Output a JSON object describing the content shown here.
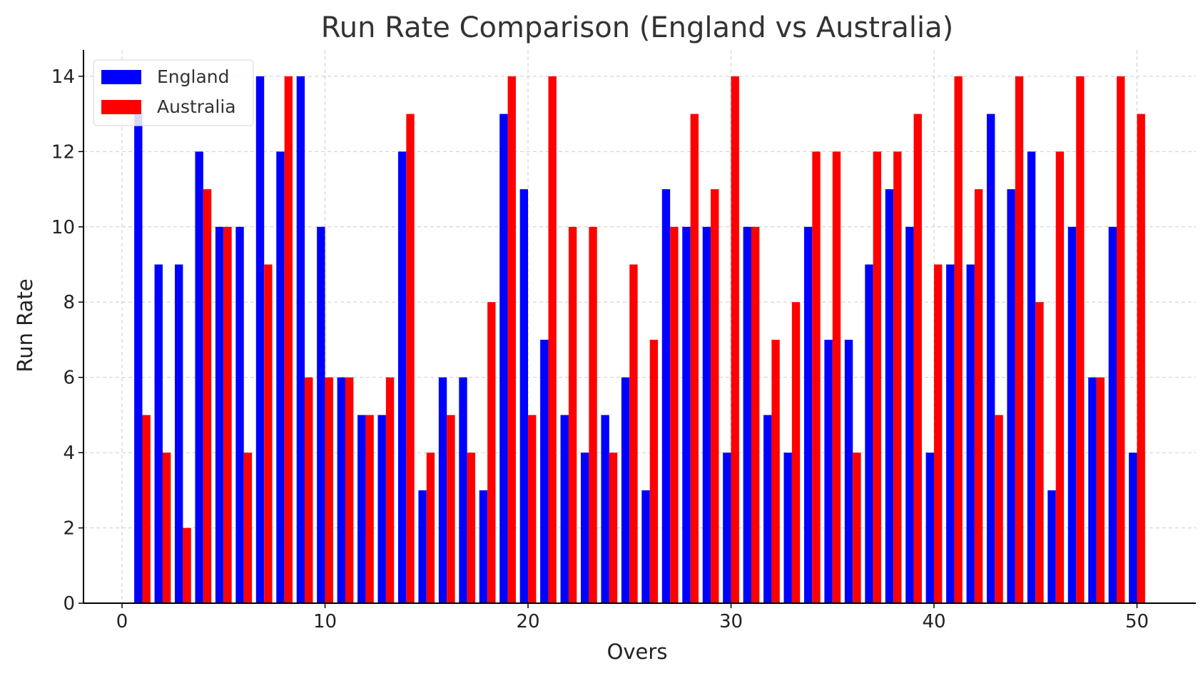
{
  "chart_data": {
    "type": "bar",
    "title": "Run Rate Comparison (England vs Australia)",
    "xlabel": "Overs",
    "ylabel": "Run Rate",
    "xlim": [
      -1.9,
      52.9
    ],
    "ylim": [
      0,
      14.7
    ],
    "x_ticks": [
      0,
      10,
      20,
      30,
      40,
      50
    ],
    "y_ticks": [
      0,
      2,
      4,
      6,
      8,
      10,
      12,
      14
    ],
    "grid": true,
    "legend_position": "top-left",
    "bar_width": 0.4,
    "x": [
      1,
      2,
      3,
      4,
      5,
      6,
      7,
      8,
      9,
      10,
      11,
      12,
      13,
      14,
      15,
      16,
      17,
      18,
      19,
      20,
      21,
      22,
      23,
      24,
      25,
      26,
      27,
      28,
      29,
      30,
      31,
      32,
      33,
      34,
      35,
      36,
      37,
      38,
      39,
      40,
      41,
      42,
      43,
      44,
      45,
      46,
      47,
      48,
      49,
      50
    ],
    "series": [
      {
        "name": "England",
        "color": "#0000ff",
        "offset": -0.2,
        "values": [
          13,
          9,
          9,
          12,
          10,
          10,
          14,
          12,
          14,
          10,
          6,
          5,
          5,
          12,
          3,
          6,
          6,
          3,
          13,
          11,
          7,
          5,
          4,
          5,
          6,
          3,
          11,
          10,
          10,
          4,
          10,
          5,
          4,
          10,
          7,
          7,
          9,
          11,
          10,
          4,
          9,
          9,
          13,
          11,
          12,
          3,
          10,
          6,
          10,
          4
        ]
      },
      {
        "name": "Australia",
        "color": "#ff0000",
        "offset": 0.2,
        "values": [
          5,
          4,
          2,
          11,
          10,
          4,
          9,
          14,
          6,
          6,
          6,
          5,
          6,
          13,
          4,
          5,
          4,
          8,
          14,
          5,
          14,
          10,
          10,
          4,
          9,
          7,
          10,
          13,
          11,
          14,
          10,
          7,
          8,
          12,
          12,
          4,
          12,
          12,
          13,
          9,
          14,
          11,
          5,
          14,
          8,
          12,
          14,
          6,
          14,
          13
        ]
      }
    ]
  }
}
